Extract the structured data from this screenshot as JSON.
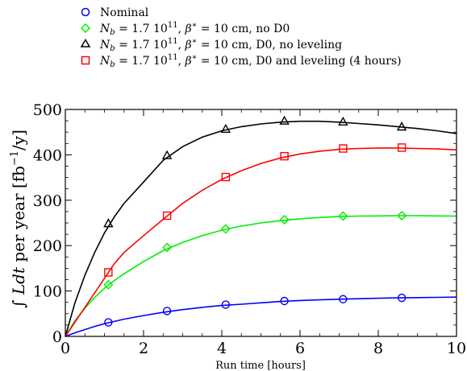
{
  "chart_data": {
    "type": "line",
    "xlabel": "Run time [hours]",
    "ylabel": "∫ Ldt per year [fb⁻¹/y]",
    "xlim": [
      0,
      10
    ],
    "ylim": [
      0,
      500
    ],
    "x_ticks": [
      "0",
      "2",
      "4",
      "6",
      "8",
      "10"
    ],
    "y_ticks": [
      "0",
      "100",
      "200",
      "300",
      "400",
      "500"
    ],
    "x_tick_values": [
      0,
      2,
      4,
      6,
      8,
      10
    ],
    "y_tick_values": [
      0,
      100,
      200,
      300,
      400,
      500
    ],
    "grid": false,
    "legend_position": "above-plot",
    "series": [
      {
        "name": "Nominal",
        "color": "#0000ff",
        "marker": "circle",
        "marker_x": [
          1.1,
          2.6,
          4.1,
          5.6,
          7.1,
          8.6
        ],
        "marker_y": [
          31,
          56,
          70,
          78,
          82,
          85
        ],
        "curve_x": [
          0,
          0.25,
          0.5,
          0.75,
          1,
          1.25,
          1.5,
          2,
          2.5,
          3,
          3.5,
          4,
          4.5,
          5,
          5.5,
          6,
          6.5,
          7,
          7.5,
          8,
          8.5,
          9,
          9.5,
          10
        ],
        "curve_y": [
          0,
          8,
          15,
          22,
          28,
          33,
          38,
          46,
          53,
          59,
          64,
          68,
          71,
          74,
          77,
          79,
          80.5,
          82,
          83,
          84,
          85,
          85.5,
          86,
          86.5
        ]
      },
      {
        "name": "N_b = 1.7 10^11, β* = 10 cm, no D0",
        "color": "#00ee00",
        "marker": "diamond",
        "marker_x": [
          1.1,
          2.6,
          4.1,
          5.6,
          7.1,
          8.6
        ],
        "marker_y": [
          114,
          196,
          237,
          257,
          265,
          266
        ],
        "curve_x": [
          0,
          0.25,
          0.5,
          0.75,
          1,
          1.25,
          1.5,
          2,
          2.5,
          3,
          3.5,
          4,
          4.5,
          5,
          5.5,
          6,
          6.5,
          7,
          7.5,
          8,
          8.5,
          9,
          9.5,
          10
        ],
        "curve_y": [
          0,
          35,
          62,
          86,
          106,
          123,
          138,
          165,
          189,
          207,
          222,
          234,
          243,
          250,
          255,
          259,
          262,
          264,
          265,
          265.5,
          266,
          266,
          265.5,
          265
        ]
      },
      {
        "name": "N_b = 1.7 10^11, β* = 10 cm, D0, no leveling",
        "color": "#000000",
        "marker": "triangle",
        "marker_x": [
          1.1,
          2.6,
          4.1,
          5.6,
          7.1,
          8.6
        ],
        "marker_y": [
          248,
          398,
          456,
          474,
          472,
          461
        ],
        "curve_x": [
          0,
          0.25,
          0.5,
          0.75,
          1,
          1.25,
          1.5,
          2,
          2.5,
          3,
          3.5,
          4,
          4.5,
          5,
          5.5,
          6,
          6.5,
          7,
          7.5,
          8,
          8.5,
          9,
          9.5,
          10
        ],
        "curve_y": [
          0,
          75,
          135,
          185,
          228,
          263,
          293,
          340,
          388,
          418,
          439,
          453,
          462,
          468,
          472,
          474,
          474,
          472,
          469,
          466,
          462,
          458,
          453,
          447
        ]
      },
      {
        "name": "N_b = 1.7 10^11, β* = 10 cm, D0 and leveling (4 hours)",
        "color": "#ff0000",
        "marker": "square",
        "marker_x": [
          1.1,
          2.6,
          4.1,
          5.6,
          7.1,
          8.6
        ],
        "marker_y": [
          141,
          266,
          351,
          397,
          414,
          416
        ],
        "curve_x": [
          0,
          0.25,
          0.5,
          0.75,
          1,
          1.25,
          1.5,
          2,
          2.5,
          3,
          3.5,
          4,
          4.5,
          5,
          5.5,
          6,
          6.5,
          7,
          7.5,
          8,
          8.5,
          9,
          9.5,
          10
        ],
        "curve_y": [
          0,
          32,
          64,
          96,
          128,
          160,
          185,
          222,
          258,
          293,
          322,
          346,
          365,
          381,
          393,
          402,
          408,
          412,
          414,
          415,
          415,
          414,
          413,
          411
        ]
      }
    ]
  }
}
